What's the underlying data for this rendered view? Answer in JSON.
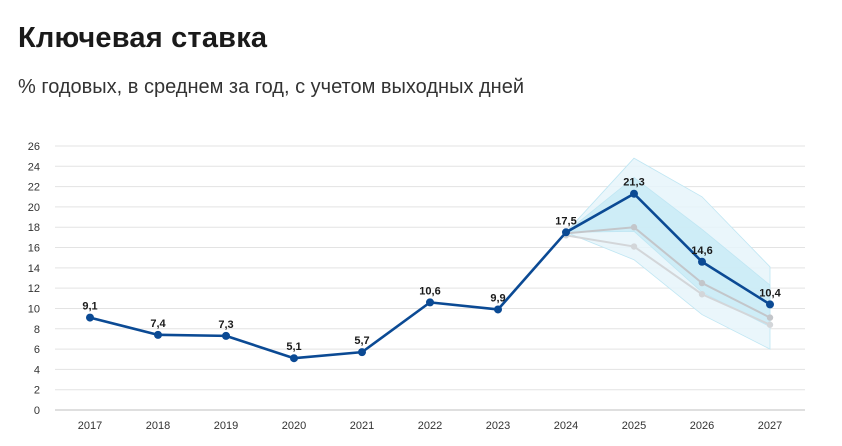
{
  "header": {
    "title": "Ключевая ставка",
    "subtitle": "% годовых, в среднем за год, с учетом выходных дней"
  },
  "chart_data": {
    "type": "line",
    "title": "Ключевая ставка",
    "subtitle": "% годовых, в среднем за год, с учетом выходных дней",
    "xlabel": "",
    "ylabel": "",
    "categories": [
      "2017",
      "2018",
      "2019",
      "2020",
      "2021",
      "2022",
      "2023",
      "2024",
      "2025",
      "2026",
      "2027"
    ],
    "ylim": [
      0,
      26
    ],
    "yticks": [
      0,
      2,
      4,
      6,
      8,
      10,
      12,
      14,
      16,
      18,
      20,
      22,
      24,
      26
    ],
    "grid": true,
    "legend": "none",
    "series": [
      {
        "role": "main",
        "color": "#0b4a94",
        "values": [
          9.1,
          7.4,
          7.3,
          5.1,
          5.7,
          10.6,
          9.9,
          17.5,
          21.3,
          14.6,
          10.4
        ],
        "labels": [
          "9,1",
          "7,4",
          "7,3",
          "5,1",
          "5,7",
          "10,6",
          "9,9",
          "17,5",
          "21,3",
          "14,6",
          "10,4"
        ]
      },
      {
        "role": "previous-forecast",
        "color": "#c3c6ca",
        "x": [
          "2024",
          "2025",
          "2026",
          "2027"
        ],
        "values": [
          17.4,
          18.0,
          12.5,
          9.1
        ]
      },
      {
        "role": "previous-forecast",
        "color": "#d3d6d9",
        "x": [
          "2024",
          "2025",
          "2026",
          "2027"
        ],
        "values": [
          17.2,
          16.1,
          11.4,
          8.4
        ]
      }
    ],
    "bands": [
      {
        "color": "#e6f5fa",
        "x": [
          "2024",
          "2025",
          "2026",
          "2027"
        ],
        "upper": [
          17.5,
          24.8,
          21.0,
          14.1
        ],
        "lower": [
          17.5,
          14.8,
          9.4,
          6.0
        ]
      },
      {
        "color": "#c9ebf6",
        "x": [
          "2024",
          "2025",
          "2026",
          "2027"
        ],
        "upper": [
          17.5,
          22.9,
          17.8,
          12.3
        ],
        "lower": [
          17.5,
          17.6,
          11.6,
          8.2
        ]
      }
    ]
  }
}
